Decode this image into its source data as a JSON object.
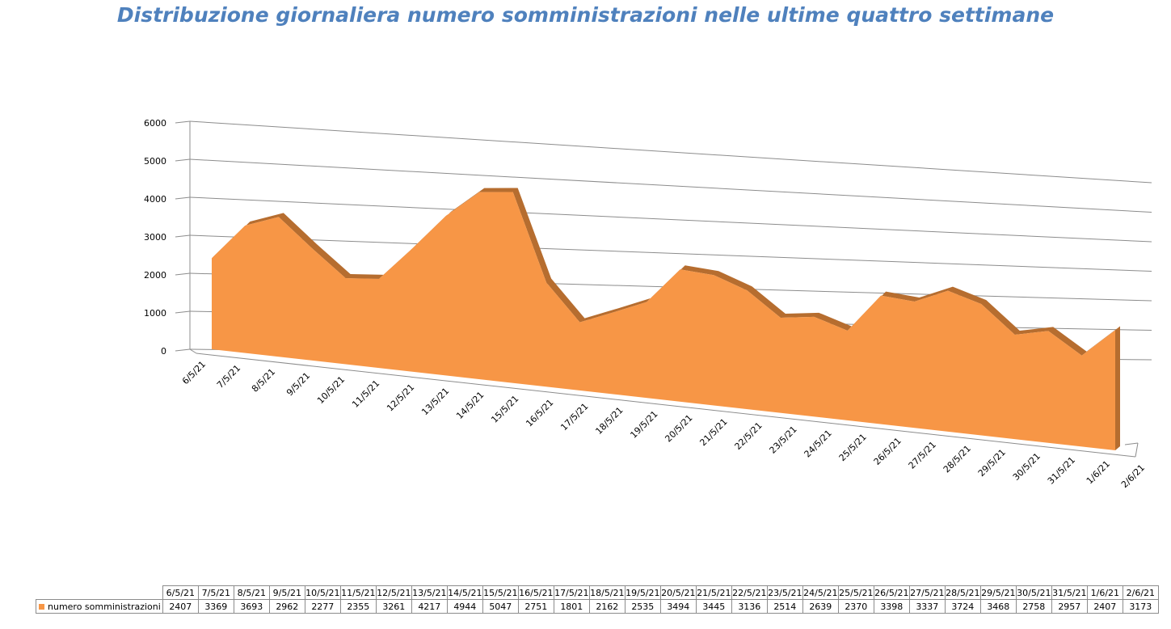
{
  "title": "Distribuzione giornaliera numero somministrazioni nelle ultime quattro settimane",
  "colors": {
    "title": "#4f81bd",
    "area_front": "#f79646",
    "area_top": "#b66d2f",
    "gridline": "#8c8c8c"
  },
  "chart_data": {
    "type": "area",
    "title": "Distribuzione giornaliera numero somministrazioni nelle ultime quattro settimane",
    "categories": [
      "6/5/21",
      "7/5/21",
      "8/5/21",
      "9/5/21",
      "10/5/21",
      "11/5/21",
      "12/5/21",
      "13/5/21",
      "14/5/21",
      "15/5/21",
      "16/5/21",
      "17/5/21",
      "18/5/21",
      "19/5/21",
      "20/5/21",
      "21/5/21",
      "22/5/21",
      "23/5/21",
      "24/5/21",
      "25/5/21",
      "26/5/21",
      "27/5/21",
      "28/5/21",
      "29/5/21",
      "30/5/21",
      "31/5/21",
      "1/6/21",
      "2/6/21"
    ],
    "series": [
      {
        "name": "numero somministrazioni",
        "values": [
          2407,
          3369,
          3693,
          2962,
          2277,
          2355,
          3261,
          4217,
          4944,
          5047,
          2751,
          1801,
          2162,
          2535,
          3494,
          3445,
          3136,
          2514,
          2639,
          2370,
          3398,
          3337,
          3724,
          3468,
          2758,
          2957,
          2407,
          3173
        ]
      }
    ],
    "yticks": [
      "0",
      "1000",
      "2000",
      "3000",
      "4000",
      "5000",
      "6000"
    ],
    "ylim": [
      0,
      6000
    ],
    "style": "3d",
    "grid": true,
    "data_table": true
  }
}
